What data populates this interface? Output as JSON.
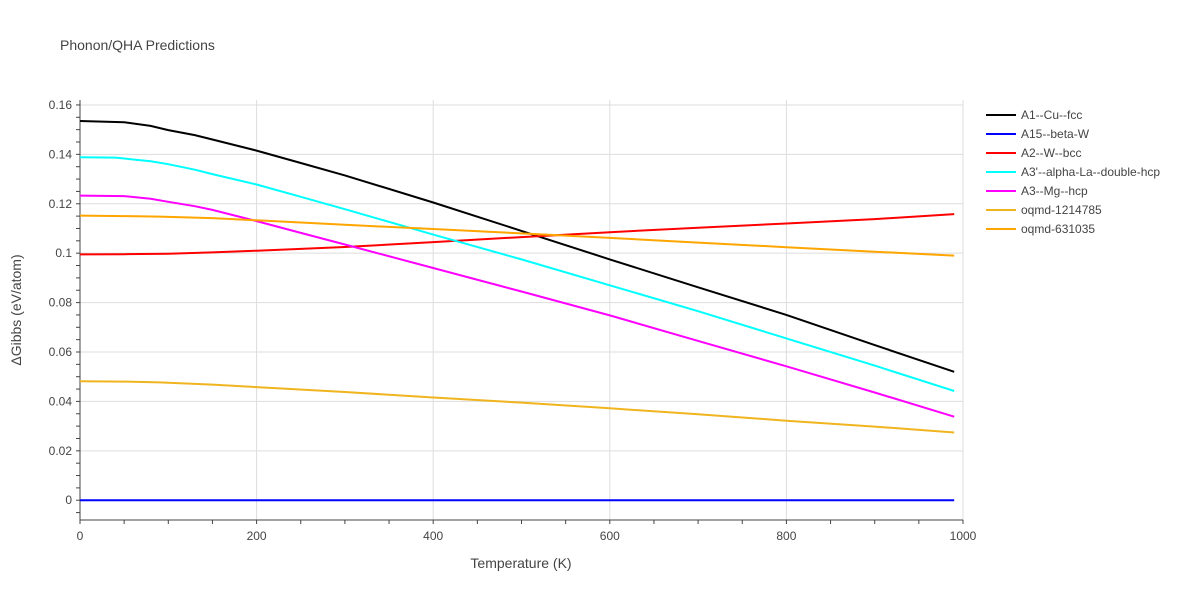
{
  "chart_data": {
    "type": "line",
    "title": "Phonon/QHA Predictions",
    "xlabel": "Temperature (K)",
    "ylabel": "ΔGibbs (eV/atom)",
    "xlim": [
      0,
      1000
    ],
    "ylim": [
      -0.008,
      0.162
    ],
    "x_ticks": [
      0,
      200,
      400,
      600,
      800,
      1000
    ],
    "x_tick_labels": [
      "0",
      "200",
      "400",
      "600",
      "800",
      "1000"
    ],
    "y_ticks": [
      0,
      0.02,
      0.04,
      0.06,
      0.08,
      0.1,
      0.12,
      0.14,
      0.16
    ],
    "y_tick_labels": [
      "0",
      "0.02",
      "0.04",
      "0.06",
      "0.08",
      "0.1",
      "0.12",
      "0.14",
      "0.16"
    ],
    "grid": true,
    "legend_position": "right",
    "series": [
      {
        "name": "A1--Cu--fcc",
        "color": "#000000",
        "x": [
          0,
          50,
          80,
          100,
          130,
          150,
          200,
          250,
          300,
          400,
          500,
          600,
          700,
          800,
          900,
          990
        ],
        "y": [
          0.1535,
          0.153,
          0.1515,
          0.1498,
          0.1478,
          0.146,
          0.1415,
          0.1365,
          0.1315,
          0.1205,
          0.109,
          0.0975,
          0.0862,
          0.075,
          0.0628,
          0.052
        ]
      },
      {
        "name": "A15--beta-W",
        "color": "#0000ff",
        "x": [
          0,
          200,
          400,
          600,
          800,
          990
        ],
        "y": [
          0,
          0,
          0,
          0,
          0,
          0
        ]
      },
      {
        "name": "A2--W--bcc",
        "color": "#ff0000",
        "x": [
          0,
          50,
          100,
          150,
          200,
          300,
          400,
          500,
          600,
          700,
          800,
          900,
          990
        ],
        "y": [
          0.0995,
          0.0996,
          0.0998,
          0.1003,
          0.101,
          0.1025,
          0.1045,
          0.1065,
          0.1085,
          0.1103,
          0.112,
          0.1138,
          0.1158
        ]
      },
      {
        "name": "A3'--alpha-La--double-hcp",
        "color": "#00ffff",
        "x": [
          0,
          40,
          80,
          100,
          130,
          150,
          200,
          250,
          300,
          400,
          500,
          600,
          700,
          800,
          900,
          990
        ],
        "y": [
          0.1388,
          0.1387,
          0.1372,
          0.136,
          0.1338,
          0.132,
          0.1278,
          0.1228,
          0.1178,
          0.1075,
          0.0975,
          0.087,
          0.0765,
          0.0655,
          0.0545,
          0.0442
        ]
      },
      {
        "name": "A3--Mg--hcp",
        "color": "#ff00ff",
        "x": [
          0,
          50,
          80,
          100,
          130,
          150,
          200,
          250,
          300,
          400,
          500,
          600,
          700,
          800,
          900,
          990
        ],
        "y": [
          0.1233,
          0.1231,
          0.122,
          0.1208,
          0.119,
          0.1175,
          0.113,
          0.1082,
          0.1035,
          0.094,
          0.0845,
          0.0748,
          0.0645,
          0.0542,
          0.0436,
          0.0338
        ]
      },
      {
        "name": "oqmd-1214785",
        "color": "#f0b41e",
        "x": [
          0,
          50,
          90,
          150,
          200,
          300,
          400,
          500,
          600,
          700,
          800,
          900,
          990
        ],
        "y": [
          0.0482,
          0.048,
          0.0477,
          0.0468,
          0.0458,
          0.0438,
          0.0416,
          0.0395,
          0.0372,
          0.0348,
          0.0322,
          0.0298,
          0.0274
        ]
      },
      {
        "name": "oqmd-631035",
        "color": "#ffa500",
        "x": [
          0,
          50,
          90,
          150,
          200,
          300,
          400,
          500,
          600,
          700,
          800,
          900,
          990
        ],
        "y": [
          0.1152,
          0.115,
          0.1148,
          0.1142,
          0.1133,
          0.1115,
          0.1098,
          0.108,
          0.1062,
          0.1043,
          0.1024,
          0.1006,
          0.099
        ]
      }
    ]
  }
}
